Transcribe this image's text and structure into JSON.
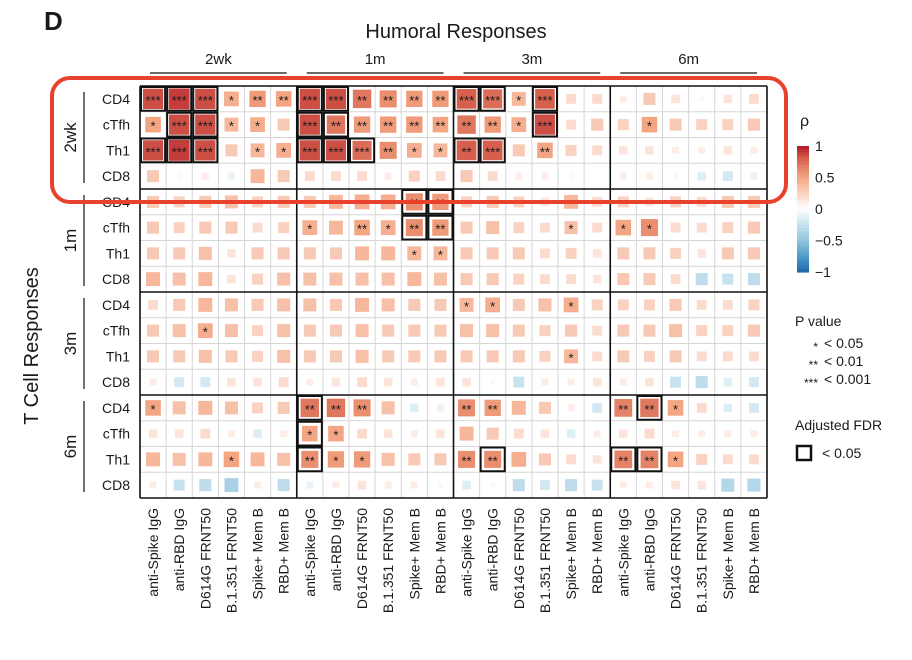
{
  "panel_label": "D",
  "chart_data": {
    "type": "heatmap",
    "title": "Humoral Responses",
    "ylabel": "T Cell Responses",
    "x_groups": [
      "2wk",
      "1m",
      "3m",
      "6m"
    ],
    "x_measures": [
      "anti-Spike IgG",
      "anti-RBD IgG",
      "D614G FRNT50",
      "B.1.351 FRNT50",
      "Spike+ Mem B",
      "RBD+ Mem B"
    ],
    "y_groups": [
      "2wk",
      "1m",
      "3m",
      "6m"
    ],
    "y_measures": [
      "CD4",
      "cTfh",
      "Th1",
      "CD8"
    ],
    "rho_range": [
      -1,
      1
    ],
    "rho": [
      [
        0.85,
        0.9,
        0.85,
        0.45,
        0.55,
        0.5,
        0.85,
        0.85,
        0.7,
        0.6,
        0.55,
        0.55,
        0.8,
        0.75,
        0.4,
        0.8,
        0.2,
        0.2,
        0.1,
        0.3,
        0.15,
        0.05,
        0.15,
        0.2
      ],
      [
        0.5,
        0.85,
        0.85,
        0.4,
        0.45,
        0.3,
        0.85,
        0.7,
        0.55,
        0.55,
        0.55,
        0.5,
        0.7,
        0.55,
        0.45,
        0.85,
        0.2,
        0.3,
        0.25,
        0.5,
        0.3,
        0.25,
        0.25,
        0.3
      ],
      [
        0.85,
        0.9,
        0.85,
        0.3,
        0.4,
        0.45,
        0.85,
        0.85,
        0.75,
        0.6,
        0.45,
        0.4,
        0.8,
        0.8,
        0.3,
        0.5,
        0.25,
        0.2,
        0.15,
        0.15,
        0.1,
        0.1,
        0.15,
        0.1
      ],
      [
        0.3,
        0.05,
        0.1,
        -0.1,
        0.4,
        0.3,
        0.2,
        0.2,
        0.2,
        0.1,
        0.25,
        0.2,
        0.3,
        0.2,
        0.1,
        0.1,
        0.05,
        0.0,
        0.1,
        0.1,
        0.05,
        -0.15,
        -0.2,
        -0.1
      ],
      [
        0.3,
        0.25,
        0.3,
        0.35,
        0.25,
        0.3,
        0.3,
        0.4,
        0.45,
        0.45,
        0.6,
        0.55,
        0.25,
        0.3,
        0.25,
        0.15,
        0.4,
        0.2,
        0.25,
        0.15,
        0.25,
        0.2,
        0.3,
        0.3
      ],
      [
        0.3,
        0.25,
        0.3,
        0.3,
        0.2,
        0.25,
        0.45,
        0.4,
        0.5,
        0.45,
        0.6,
        0.55,
        0.3,
        0.35,
        0.25,
        0.2,
        0.35,
        0.2,
        0.5,
        0.6,
        0.2,
        0.2,
        0.25,
        0.3
      ],
      [
        0.3,
        0.3,
        0.35,
        0.15,
        0.3,
        0.3,
        0.3,
        0.3,
        0.4,
        0.4,
        0.4,
        0.4,
        0.3,
        0.3,
        0.3,
        0.2,
        0.25,
        0.15,
        0.3,
        0.3,
        0.25,
        0.15,
        0.3,
        0.3
      ],
      [
        0.4,
        0.35,
        0.4,
        0.15,
        0.25,
        0.35,
        0.35,
        0.35,
        0.35,
        0.35,
        0.4,
        0.35,
        0.3,
        0.3,
        0.25,
        0.2,
        0.2,
        0.15,
        0.3,
        0.3,
        0.2,
        -0.3,
        -0.25,
        -0.3
      ],
      [
        0.2,
        0.3,
        0.4,
        0.35,
        0.3,
        0.35,
        0.35,
        0.3,
        0.4,
        0.35,
        0.3,
        0.3,
        0.4,
        0.45,
        0.3,
        0.35,
        0.45,
        0.25,
        0.25,
        0.25,
        0.3,
        0.2,
        0.2,
        0.25
      ],
      [
        0.3,
        0.35,
        0.45,
        0.35,
        0.25,
        0.35,
        0.3,
        0.3,
        0.35,
        0.3,
        0.3,
        0.3,
        0.35,
        0.35,
        0.3,
        0.25,
        0.3,
        0.2,
        0.3,
        0.3,
        0.35,
        0.25,
        0.25,
        0.3
      ],
      [
        0.3,
        0.3,
        0.35,
        0.3,
        0.25,
        0.35,
        0.3,
        0.3,
        0.35,
        0.3,
        0.3,
        0.3,
        0.3,
        0.3,
        0.3,
        0.25,
        0.4,
        0.2,
        0.3,
        0.25,
        0.3,
        0.2,
        0.2,
        0.2
      ],
      [
        0.1,
        -0.2,
        -0.2,
        0.15,
        0.15,
        0.2,
        0.1,
        0.15,
        0.2,
        0.15,
        0.1,
        0.15,
        0.15,
        0.05,
        -0.25,
        0.1,
        0.1,
        0.15,
        0.1,
        0.15,
        -0.25,
        -0.3,
        -0.15,
        -0.2
      ],
      [
        0.5,
        0.35,
        0.4,
        0.35,
        0.25,
        0.3,
        0.7,
        0.7,
        0.6,
        0.35,
        -0.15,
        -0.1,
        0.6,
        0.55,
        0.4,
        0.3,
        0.1,
        -0.2,
        0.65,
        0.7,
        0.5,
        0.2,
        -0.15,
        -0.2
      ],
      [
        0.15,
        0.15,
        0.2,
        0.1,
        -0.15,
        0.1,
        0.5,
        0.5,
        0.2,
        0.15,
        0.1,
        0.15,
        0.4,
        0.3,
        0.2,
        0.15,
        -0.15,
        0.1,
        0.15,
        0.2,
        0.1,
        0.1,
        0.1,
        0.1
      ],
      [
        0.4,
        0.35,
        0.4,
        0.5,
        0.4,
        0.35,
        0.6,
        0.55,
        0.55,
        0.35,
        0.3,
        0.3,
        0.6,
        0.6,
        0.45,
        0.3,
        0.2,
        0.15,
        0.65,
        0.65,
        0.5,
        0.25,
        0.2,
        0.2
      ],
      [
        0.1,
        -0.25,
        -0.3,
        -0.4,
        0.1,
        -0.3,
        -0.1,
        0.1,
        0.15,
        0.1,
        0.1,
        0.05,
        -0.15,
        0.05,
        -0.3,
        -0.2,
        -0.3,
        -0.25,
        0.1,
        0.1,
        0.15,
        0.15,
        -0.35,
        -0.35
      ]
    ],
    "stars": [
      [
        "***",
        "***",
        "***",
        "*",
        "**",
        "**",
        "***",
        "***",
        "**",
        "**",
        "**",
        "**",
        "***",
        "***",
        "*",
        "***",
        "",
        "",
        "",
        "",
        "",
        "",
        "",
        ""
      ],
      [
        "*",
        "***",
        "***",
        "*",
        "*",
        "",
        "***",
        "**",
        "**",
        "**",
        "**",
        "**",
        "**",
        "**",
        "*",
        "***",
        "",
        "",
        "",
        "*",
        "",
        "",
        "",
        ""
      ],
      [
        "***",
        "***",
        "***",
        "",
        "*",
        "*",
        "***",
        "***",
        "***",
        "**",
        "*",
        "*",
        "**",
        "***",
        "",
        "**",
        "",
        "",
        "",
        "",
        "",
        "",
        "",
        ""
      ],
      [
        "",
        "",
        "",
        "",
        "",
        "",
        "",
        "",
        "",
        "",
        "",
        "",
        "",
        "",
        "",
        "",
        "",
        "",
        "",
        "",
        "",
        "",
        "",
        ""
      ],
      [
        "",
        "",
        "",
        "",
        "",
        "",
        "",
        "",
        "",
        "",
        "**",
        "**",
        "",
        "",
        "",
        "",
        "",
        "",
        "",
        "",
        "",
        "",
        "",
        ""
      ],
      [
        "",
        "",
        "",
        "",
        "",
        "",
        "*",
        "",
        "**",
        "*",
        "**",
        "**",
        "",
        "",
        "",
        "",
        "*",
        "",
        "*",
        "*",
        "",
        "",
        "",
        ""
      ],
      [
        "",
        "",
        "",
        "",
        "",
        "",
        "",
        "",
        "",
        "",
        "*",
        "*",
        "",
        "",
        "",
        "",
        "",
        "",
        "",
        "",
        "",
        "",
        "",
        ""
      ],
      [
        "",
        "",
        "",
        "",
        "",
        "",
        "",
        "",
        "",
        "",
        "",
        "",
        "",
        "",
        "",
        "",
        "",
        "",
        "",
        "",
        "",
        "",
        "",
        ""
      ],
      [
        "",
        "",
        "",
        "",
        "",
        "",
        "",
        "",
        "",
        "",
        "",
        "",
        "*",
        "*",
        "",
        "",
        "*",
        "",
        "",
        "",
        "",
        "",
        "",
        ""
      ],
      [
        "",
        "",
        "*",
        "",
        "",
        "",
        "",
        "",
        "",
        "",
        "",
        "",
        "",
        "",
        "",
        "",
        "",
        "",
        "",
        "",
        "",
        "",
        "",
        ""
      ],
      [
        "",
        "",
        "",
        "",
        "",
        "",
        "",
        "",
        "",
        "",
        "",
        "",
        "",
        "",
        "",
        "",
        "*",
        "",
        "",
        "",
        "",
        "",
        "",
        ""
      ],
      [
        "",
        "",
        "",
        "",
        "",
        "",
        "",
        "",
        "",
        "",
        "",
        "",
        "",
        "",
        "",
        "",
        "",
        "",
        "",
        "",
        "",
        "",
        "",
        ""
      ],
      [
        "*",
        "",
        "",
        "",
        "",
        "",
        "**",
        "**",
        "**",
        "",
        "",
        "",
        "**",
        "**",
        "",
        "",
        "",
        "",
        "**",
        "**",
        "*",
        "",
        "",
        ""
      ],
      [
        "",
        "",
        "",
        "",
        "",
        "",
        "*",
        "*",
        "",
        "",
        "",
        "",
        "",
        "",
        "",
        "",
        "",
        "",
        "",
        "",
        "",
        "",
        "",
        ""
      ],
      [
        "",
        "",
        "",
        "*",
        "",
        "",
        "**",
        "*",
        "*",
        "",
        "",
        "",
        "**",
        "**",
        "",
        "",
        "",
        "",
        "**",
        "**",
        "*",
        "",
        "",
        ""
      ],
      [
        "",
        "",
        "",
        "",
        "",
        "",
        "",
        "",
        "",
        "",
        "",
        "",
        "",
        "",
        "",
        "",
        "",
        "",
        "",
        "",
        "",
        "",
        "",
        ""
      ]
    ],
    "fdr_boxes": [
      [
        0,
        0,
        3,
        3
      ],
      [
        0,
        1,
        2,
        2
      ],
      [
        0,
        2,
        1,
        2
      ],
      [
        0,
        3,
        1,
        2
      ],
      [
        4,
        6,
        2,
        2
      ],
      [
        6,
        0,
        1,
        1
      ],
      [
        6,
        1,
        1,
        1
      ],
      [
        7,
        1,
        1,
        1
      ],
      [
        6,
        4,
        1,
        1
      ],
      [
        6,
        5,
        1,
        1
      ],
      [
        6,
        6,
        1,
        1
      ],
      [
        6,
        7,
        1,
        1
      ],
      [
        7,
        1,
        1,
        1
      ]
    ],
    "legend": {
      "rho_title": "ρ",
      "rho_ticks": [
        "1",
        "0.5",
        "0",
        "−0.5",
        "−1"
      ],
      "p_title": "P value",
      "p_items": [
        {
          "stars": "*",
          "label": "< 0.05"
        },
        {
          "stars": "**",
          "label": "< 0.01"
        },
        {
          "stars": "***",
          "label": "< 0.001"
        }
      ],
      "fdr_title": "Adjusted FDR",
      "fdr_label": "< 0.05"
    },
    "highlight": "top row group (2wk T cell responses) circled in red"
  }
}
